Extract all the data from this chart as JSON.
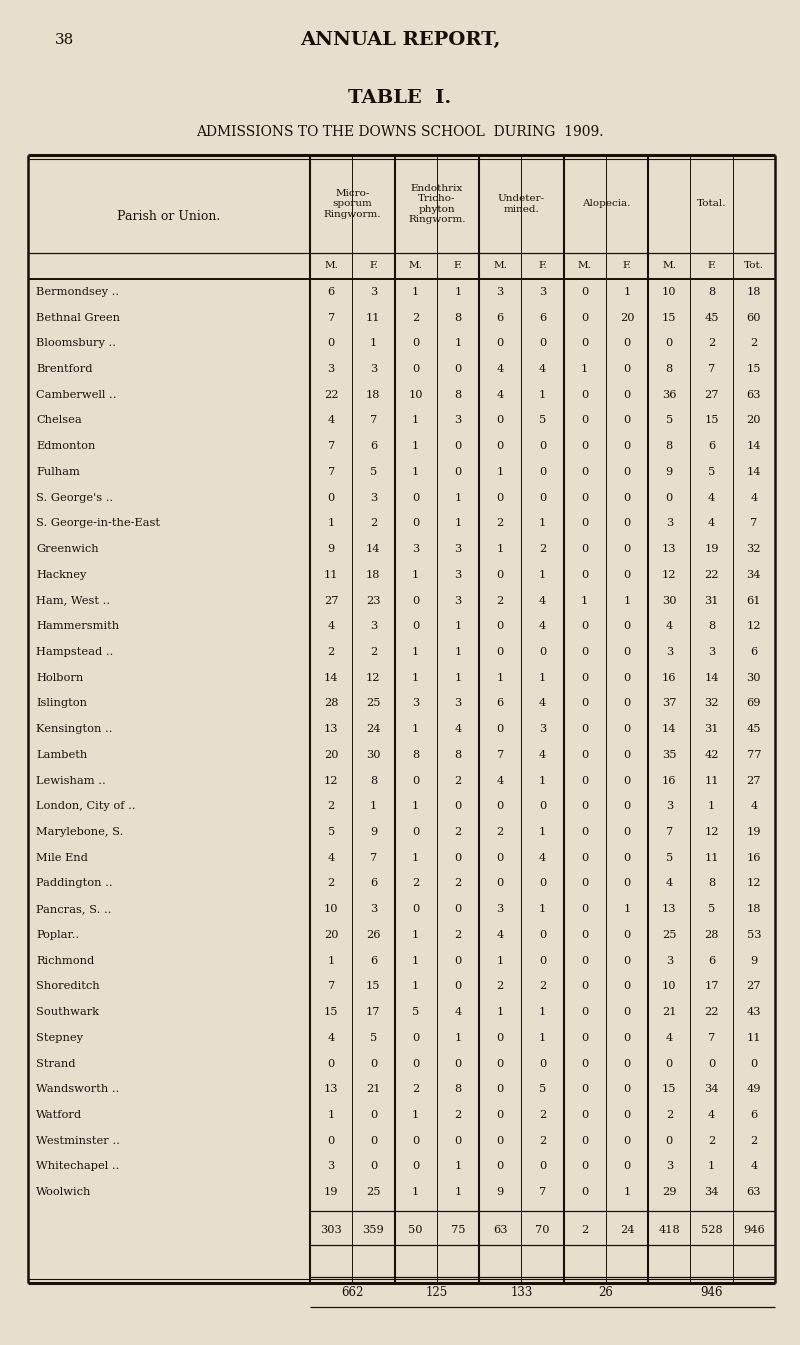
{
  "page_number": "38",
  "page_title": "ANNUAL REPORT,",
  "table_title": "TABLE  I.",
  "table_subtitle": "ADMISSIONS TO THE DOWNS SCHOOL  DURING  1909.",
  "bg_color": "#e8dece",
  "text_color": "#1a1008",
  "header_groups": [
    "Micro-\nsporum\nRingworm.",
    "Endothrix\nTricho-\nphyton\nRingworm.",
    "Undeter-\nmined.",
    "Alopecia.",
    "Total."
  ],
  "sub_headers": [
    "M.",
    "F.",
    "M.",
    "F.",
    "M.",
    "F.",
    "M.",
    "F.",
    "M.",
    "F.",
    "Tot."
  ],
  "col_label": "Parish or Union.",
  "rows": [
    [
      "Bermondsey ..",
      6,
      3,
      1,
      1,
      3,
      3,
      0,
      1,
      10,
      8,
      18
    ],
    [
      "Bethnal Green",
      7,
      11,
      2,
      8,
      6,
      6,
      0,
      20,
      15,
      45,
      60
    ],
    [
      "Bloomsbury ..",
      0,
      1,
      0,
      1,
      0,
      0,
      0,
      0,
      0,
      2,
      2
    ],
    [
      "Brentford",
      3,
      3,
      0,
      0,
      4,
      4,
      1,
      0,
      8,
      7,
      15
    ],
    [
      "Camberwell ..",
      22,
      18,
      10,
      8,
      4,
      1,
      0,
      0,
      36,
      27,
      63
    ],
    [
      "Chelsea",
      4,
      7,
      1,
      3,
      0,
      5,
      0,
      0,
      5,
      15,
      20
    ],
    [
      "Edmonton",
      7,
      6,
      1,
      0,
      0,
      0,
      0,
      0,
      8,
      6,
      14
    ],
    [
      "Fulham",
      7,
      5,
      1,
      0,
      1,
      0,
      0,
      0,
      9,
      5,
      14
    ],
    [
      "S. George's ..",
      0,
      3,
      0,
      1,
      0,
      0,
      0,
      0,
      0,
      4,
      4
    ],
    [
      "S. George-in-the-East",
      1,
      2,
      0,
      1,
      2,
      1,
      0,
      0,
      3,
      4,
      7
    ],
    [
      "Greenwich",
      9,
      14,
      3,
      3,
      1,
      2,
      0,
      0,
      13,
      19,
      32
    ],
    [
      "Hackney",
      11,
      18,
      1,
      3,
      0,
      1,
      0,
      0,
      12,
      22,
      34
    ],
    [
      "Ham, West ..",
      27,
      23,
      0,
      3,
      2,
      4,
      1,
      1,
      30,
      31,
      61
    ],
    [
      "Hammersmith",
      4,
      3,
      0,
      1,
      0,
      4,
      0,
      0,
      4,
      8,
      12
    ],
    [
      "Hampstead ..",
      2,
      2,
      1,
      1,
      0,
      0,
      0,
      0,
      3,
      3,
      6
    ],
    [
      "Holborn",
      14,
      12,
      1,
      1,
      1,
      1,
      0,
      0,
      16,
      14,
      30
    ],
    [
      "Islington",
      28,
      25,
      3,
      3,
      6,
      4,
      0,
      0,
      37,
      32,
      69
    ],
    [
      "Kensington ..",
      13,
      24,
      1,
      4,
      0,
      3,
      0,
      0,
      14,
      31,
      45
    ],
    [
      "Lambeth",
      20,
      30,
      8,
      8,
      7,
      4,
      0,
      0,
      35,
      42,
      77
    ],
    [
      "Lewisham ..",
      12,
      8,
      0,
      2,
      4,
      1,
      0,
      0,
      16,
      11,
      27
    ],
    [
      "London, City of ..",
      2,
      1,
      1,
      0,
      0,
      0,
      0,
      0,
      3,
      1,
      4
    ],
    [
      "Marylebone, S.",
      5,
      9,
      0,
      2,
      2,
      1,
      0,
      0,
      7,
      12,
      19
    ],
    [
      "Mile End",
      4,
      7,
      1,
      0,
      0,
      4,
      0,
      0,
      5,
      11,
      16
    ],
    [
      "Paddington ..",
      2,
      6,
      2,
      2,
      0,
      0,
      0,
      0,
      4,
      8,
      12
    ],
    [
      "Pancras, S. ..",
      10,
      3,
      0,
      0,
      3,
      1,
      0,
      1,
      13,
      5,
      18
    ],
    [
      "Poplar..",
      20,
      26,
      1,
      2,
      4,
      0,
      0,
      0,
      25,
      28,
      53
    ],
    [
      "Richmond",
      1,
      6,
      1,
      0,
      1,
      0,
      0,
      0,
      3,
      6,
      9
    ],
    [
      "Shoreditch",
      7,
      15,
      1,
      0,
      2,
      2,
      0,
      0,
      10,
      17,
      27
    ],
    [
      "Southwark",
      15,
      17,
      5,
      4,
      1,
      1,
      0,
      0,
      21,
      22,
      43
    ],
    [
      "Stepney",
      4,
      5,
      0,
      1,
      0,
      1,
      0,
      0,
      4,
      7,
      11
    ],
    [
      "Strand",
      0,
      0,
      0,
      0,
      0,
      0,
      0,
      0,
      0,
      0,
      0
    ],
    [
      "Wandsworth ..",
      13,
      21,
      2,
      8,
      0,
      5,
      0,
      0,
      15,
      34,
      49
    ],
    [
      "Watford",
      1,
      0,
      1,
      2,
      0,
      2,
      0,
      0,
      2,
      4,
      6
    ],
    [
      "Westminster ..",
      0,
      0,
      0,
      0,
      0,
      2,
      0,
      0,
      0,
      2,
      2
    ],
    [
      "Whitechapel ..",
      3,
      0,
      0,
      1,
      0,
      0,
      0,
      0,
      3,
      1,
      4
    ],
    [
      "Woolwich",
      19,
      25,
      1,
      1,
      9,
      7,
      0,
      1,
      29,
      34,
      63
    ]
  ],
  "totals_row": [
    303,
    359,
    50,
    75,
    63,
    70,
    2,
    24,
    418,
    528,
    946
  ],
  "subtotals_row": [
    662,
    125,
    133,
    26,
    946
  ]
}
